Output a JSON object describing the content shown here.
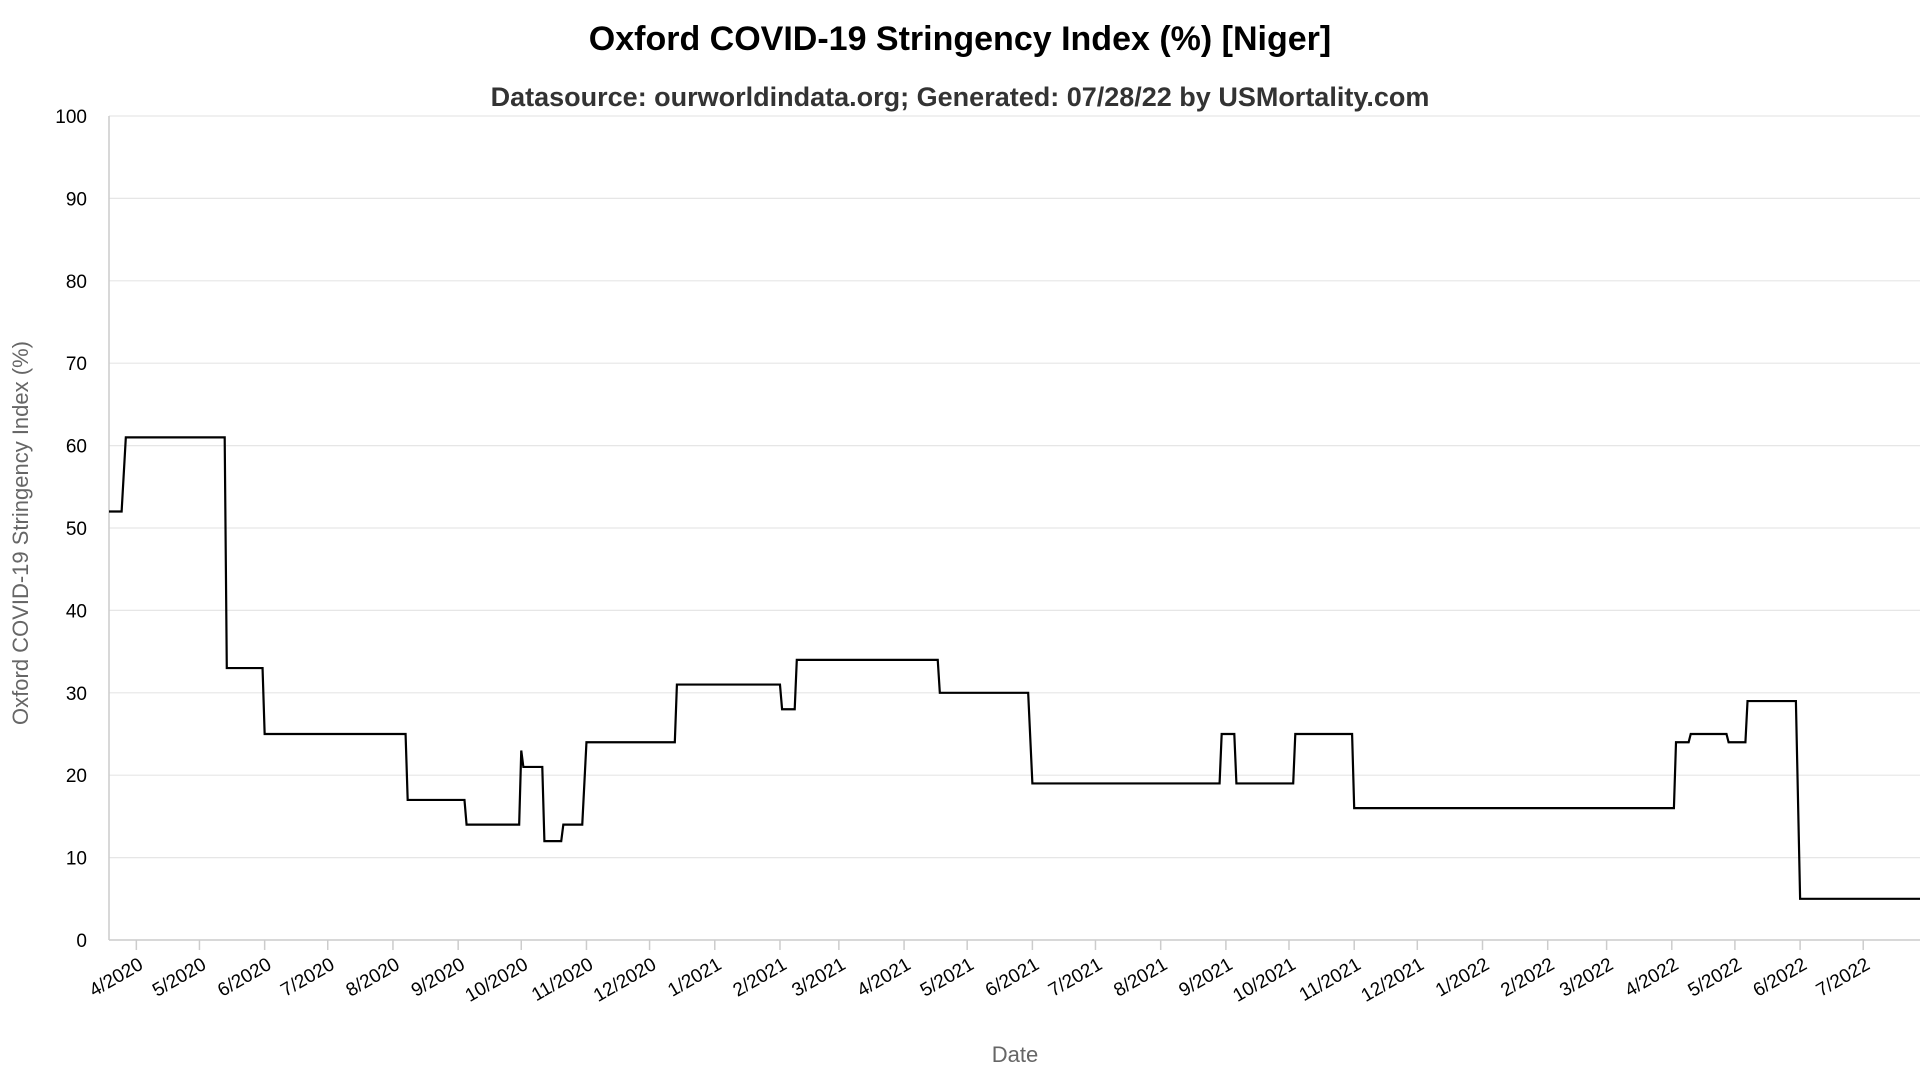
{
  "chart_data": {
    "type": "line",
    "title": "Oxford COVID-19 Stringency Index (%) [Niger]",
    "subtitle": "Datasource: ourworldindata.org; Generated: 07/28/22 by USMortality.com",
    "xlabel": "Date",
    "ylabel": "Oxford COVID-19 Stringency Index (%)",
    "ylim": [
      0,
      100
    ],
    "xlim": [
      "2020-03-19",
      "2022-07-28"
    ],
    "y_ticks": [
      0,
      10,
      20,
      30,
      40,
      50,
      60,
      70,
      80,
      90,
      100
    ],
    "x_ticks": [
      {
        "date": "2020-04-01",
        "label": "4/2020"
      },
      {
        "date": "2020-05-01",
        "label": "5/2020"
      },
      {
        "date": "2020-06-01",
        "label": "6/2020"
      },
      {
        "date": "2020-07-01",
        "label": "7/2020"
      },
      {
        "date": "2020-08-01",
        "label": "8/2020"
      },
      {
        "date": "2020-09-01",
        "label": "9/2020"
      },
      {
        "date": "2020-10-01",
        "label": "10/2020"
      },
      {
        "date": "2020-11-01",
        "label": "11/2020"
      },
      {
        "date": "2020-12-01",
        "label": "12/2020"
      },
      {
        "date": "2021-01-01",
        "label": "1/2021"
      },
      {
        "date": "2021-02-01",
        "label": "2/2021"
      },
      {
        "date": "2021-03-01",
        "label": "3/2021"
      },
      {
        "date": "2021-04-01",
        "label": "4/2021"
      },
      {
        "date": "2021-05-01",
        "label": "5/2021"
      },
      {
        "date": "2021-06-01",
        "label": "6/2021"
      },
      {
        "date": "2021-07-01",
        "label": "7/2021"
      },
      {
        "date": "2021-08-01",
        "label": "8/2021"
      },
      {
        "date": "2021-09-01",
        "label": "9/2021"
      },
      {
        "date": "2021-10-01",
        "label": "10/2021"
      },
      {
        "date": "2021-11-01",
        "label": "11/2021"
      },
      {
        "date": "2021-12-01",
        "label": "12/2021"
      },
      {
        "date": "2022-01-01",
        "label": "1/2022"
      },
      {
        "date": "2022-02-01",
        "label": "2/2022"
      },
      {
        "date": "2022-03-01",
        "label": "3/2022"
      },
      {
        "date": "2022-04-01",
        "label": "4/2022"
      },
      {
        "date": "2022-05-01",
        "label": "5/2022"
      },
      {
        "date": "2022-06-01",
        "label": "6/2022"
      },
      {
        "date": "2022-07-01",
        "label": "7/2022"
      }
    ],
    "grid": true,
    "legend": "none",
    "line_color": "#000000",
    "series": [
      {
        "points": [
          [
            "2020-03-19",
            52
          ],
          [
            "2020-03-25",
            52
          ],
          [
            "2020-03-27",
            61
          ],
          [
            "2020-05-13",
            61
          ],
          [
            "2020-05-14",
            33
          ],
          [
            "2020-05-31",
            33
          ],
          [
            "2020-06-01",
            25
          ],
          [
            "2020-08-07",
            25
          ],
          [
            "2020-08-08",
            17
          ],
          [
            "2020-09-04",
            17
          ],
          [
            "2020-09-05",
            14
          ],
          [
            "2020-09-30",
            14
          ],
          [
            "2020-10-01",
            23
          ],
          [
            "2020-10-02",
            21
          ],
          [
            "2020-10-11",
            21
          ],
          [
            "2020-10-12",
            12
          ],
          [
            "2020-10-20",
            12
          ],
          [
            "2020-10-21",
            14
          ],
          [
            "2020-10-30",
            14
          ],
          [
            "2020-11-01",
            24
          ],
          [
            "2020-12-13",
            24
          ],
          [
            "2020-12-14",
            31
          ],
          [
            "2021-02-01",
            31
          ],
          [
            "2021-02-02",
            28
          ],
          [
            "2021-02-08",
            28
          ],
          [
            "2021-02-09",
            34
          ],
          [
            "2021-04-17",
            34
          ],
          [
            "2021-04-18",
            30
          ],
          [
            "2021-05-30",
            30
          ],
          [
            "2021-06-01",
            19
          ],
          [
            "2021-08-29",
            19
          ],
          [
            "2021-08-30",
            25
          ],
          [
            "2021-09-05",
            25
          ],
          [
            "2021-09-06",
            19
          ],
          [
            "2021-10-03",
            19
          ],
          [
            "2021-10-04",
            25
          ],
          [
            "2021-10-31",
            25
          ],
          [
            "2021-11-01",
            16
          ],
          [
            "2022-04-02",
            16
          ],
          [
            "2022-04-03",
            24
          ],
          [
            "2022-04-09",
            24
          ],
          [
            "2022-04-10",
            25
          ],
          [
            "2022-04-27",
            25
          ],
          [
            "2022-04-28",
            24
          ],
          [
            "2022-05-06",
            24
          ],
          [
            "2022-05-07",
            29
          ],
          [
            "2022-05-30",
            29
          ],
          [
            "2022-06-01",
            5
          ],
          [
            "2022-07-28",
            5
          ]
        ]
      }
    ]
  }
}
